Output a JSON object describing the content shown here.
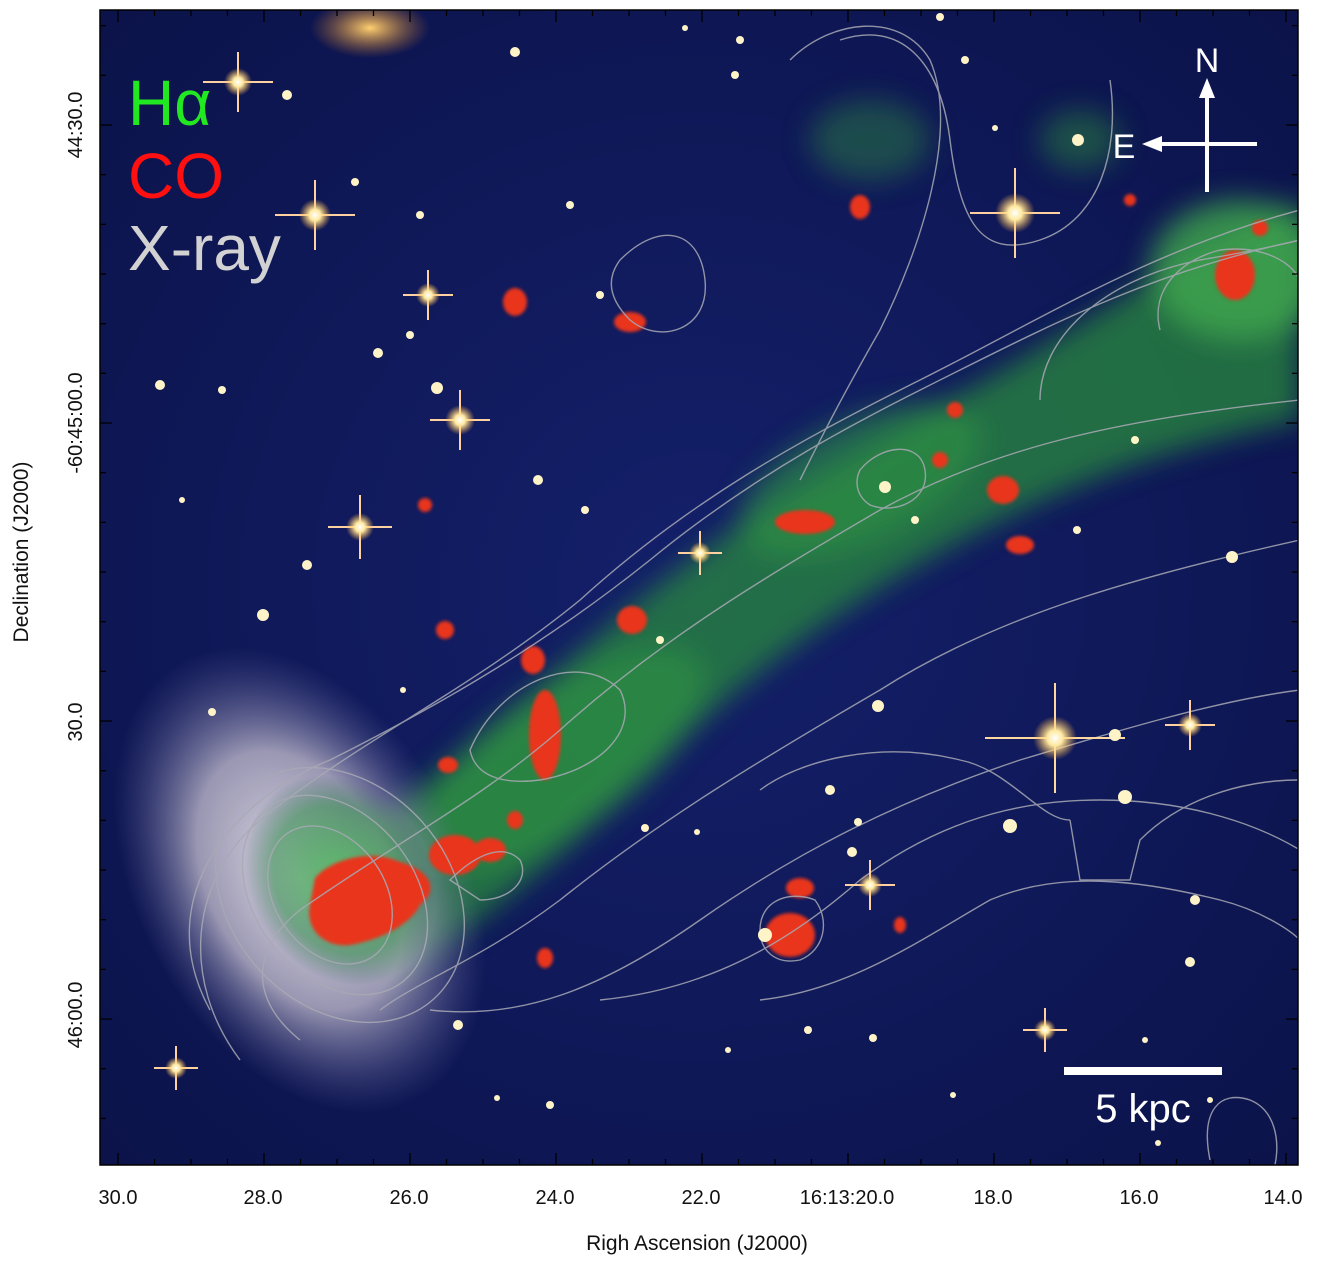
{
  "legend": [
    {
      "label": "Hα",
      "color": "#22e822"
    },
    {
      "label": "CO",
      "color": "#ff1010"
    },
    {
      "label": "X-ray",
      "color": "#d2d2d2"
    }
  ],
  "compass": {
    "north": "N",
    "east": "E"
  },
  "scale_bar": {
    "label": "5 kpc"
  },
  "axes": {
    "xlabel": "Righ Ascension (J2000)",
    "ylabel": "Declination (J2000)",
    "x_ticks": [
      "30.0",
      "28.0",
      "26.0",
      "24.0",
      "22.0",
      "16:13:20.0",
      "18.0",
      "16.0",
      "14.0"
    ],
    "y_ticks": [
      "44:30.0",
      "-60:45:00.0",
      "30.0",
      "46:00.0"
    ]
  },
  "colors": {
    "sky": "#0d1450",
    "halpha_tail": "#2e8a3c",
    "co_clumps": "#e8301c",
    "xray_contours": "#a8aab4",
    "galaxy_disk": "#d8d4d8"
  }
}
